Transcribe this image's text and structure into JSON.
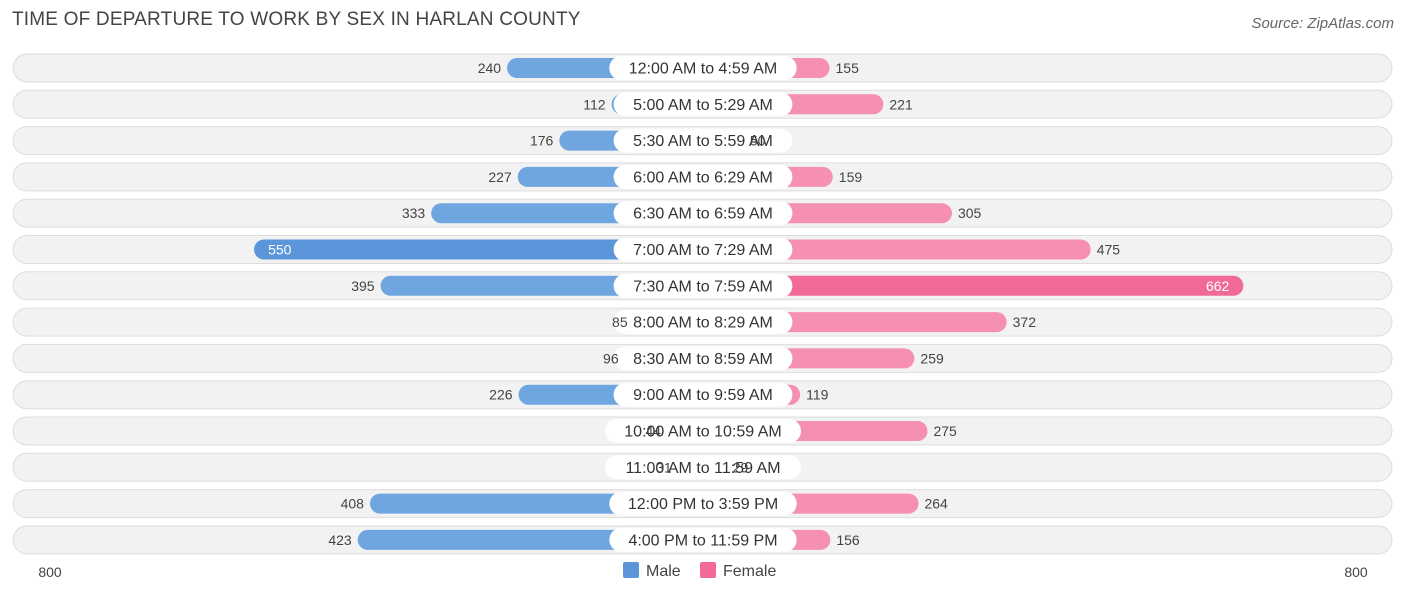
{
  "chart_data": {
    "type": "bar",
    "orientation": "horizontal-diverging",
    "title": "TIME OF DEPARTURE TO WORK BY SEX IN HARLAN COUNTY",
    "source": "Source: ZipAtlas.com",
    "categories": [
      "12:00 AM to 4:59 AM",
      "5:00 AM to 5:29 AM",
      "5:30 AM to 5:59 AM",
      "6:00 AM to 6:29 AM",
      "6:30 AM to 6:59 AM",
      "7:00 AM to 7:29 AM",
      "7:30 AM to 7:59 AM",
      "8:00 AM to 8:29 AM",
      "8:30 AM to 8:59 AM",
      "9:00 AM to 9:59 AM",
      "10:00 AM to 10:59 AM",
      "11:00 AM to 11:59 AM",
      "12:00 PM to 3:59 PM",
      "4:00 PM to 11:59 PM"
    ],
    "series": [
      {
        "name": "Male",
        "values": [
          240,
          112,
          176,
          227,
          333,
          550,
          395,
          85,
          96,
          226,
          44,
          31,
          408,
          423
        ]
      },
      {
        "name": "Female",
        "values": [
          155,
          221,
          50,
          159,
          305,
          475,
          662,
          372,
          259,
          119,
          275,
          29,
          264,
          156
        ]
      }
    ],
    "xlim": [
      -800,
      800
    ],
    "axis_tick_labels": [
      "800",
      "800"
    ],
    "legend": [
      "Male",
      "Female"
    ],
    "legend_position": "bottom-center",
    "colors": {
      "male": "#6fa6e0",
      "male_light": "#a8c9ee",
      "male_strong": "#5b96da",
      "female": "#f590b0",
      "female_light": "#f8b6cb",
      "female_strong": "#f06a95",
      "track": "#f2f2f2",
      "track_border": "#dddddd"
    }
  }
}
